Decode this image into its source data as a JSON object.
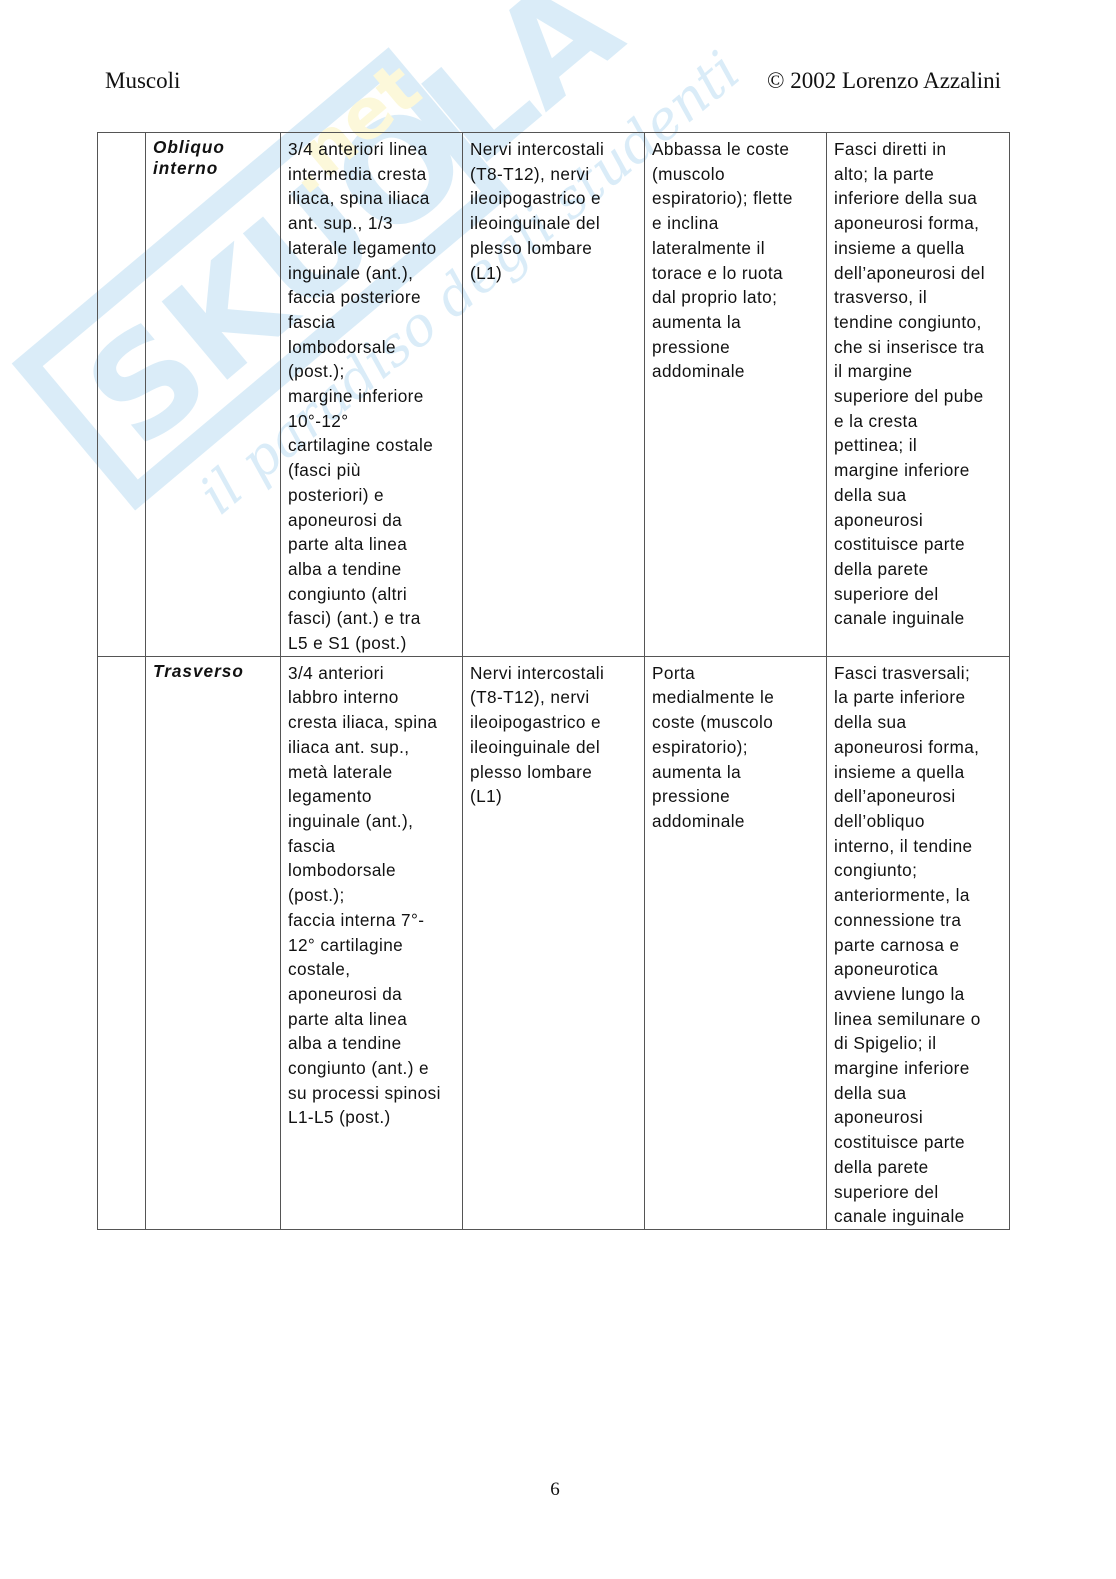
{
  "header": {
    "left": "Muscoli",
    "right": "© 2002 Lorenzo Azzalini"
  },
  "watermark": {
    "brand": "Skuola.net",
    "tagline": "il paradiso degli studenti",
    "color": "#5aaee0",
    "accent": "#f5e35a"
  },
  "table": {
    "rows": [
      {
        "group": "",
        "name": "Obliquo\ninterno",
        "origin": "3/4 anteriori linea\nintermedia cresta\niliaca, spina iliaca\nant. sup., 1/3\nlaterale legamento\ninguinale (ant.),\nfaccia posteriore\nfascia\nlombodorsale\n(post.);\nmargine inferiore\n10°-12°\ncartilagine costale\n(fasci più\nposteriori) e\naponeurosi da\nparte alta linea\nalba a tendine\ncongiunto (altri\nfasci) (ant.) e tra\nL5 e S1 (post.)",
        "innervation": "Nervi intercostali\n(T8-T12), nervi\nileoipogastrico e\nileoinguinale del\nplesso lombare\n(L1)",
        "action": "Abbassa le coste\n(muscolo\nespiratorio); flette\ne inclina\nlateralmente il\ntorace e lo ruota\ndal proprio lato;\naumenta la\npressione\naddominale",
        "notes": "Fasci diretti in\nalto; la parte\ninferiore della sua\naponeurosi forma,\ninsieme a quella\ndell’aponeurosi del\ntrasverso, il\ntendine congiunto,\nche si inserisce tra\nil margine\nsuperiore del pube\ne la cresta\npettinea; il\nmargine inferiore\ndella sua\naponeurosi\ncostituisce parte\ndella parete\nsuperiore del\ncanale inguinale"
      },
      {
        "group": "",
        "name": "Trasverso",
        "origin": "3/4 anteriori\nlabbro interno\ncresta iliaca, spina\niliaca ant. sup.,\nmetà laterale\nlegamento\ninguinale (ant.),\nfascia\nlombodorsale\n(post.);\nfaccia interna 7°-\n12° cartilagine\ncostale,\naponeurosi da\nparte alta linea\nalba a tendine\ncongiunto (ant.) e\nsu processi spinosi\nL1-L5 (post.)",
        "innervation": "Nervi intercostali\n(T8-T12), nervi\nileoipogastrico e\nileoinguinale del\nplesso lombare\n(L1)",
        "action": "Porta\nmedialmente le\ncoste (muscolo\nespiratorio);\naumenta la\npressione\naddominale",
        "notes": "Fasci trasversali;\nla parte inferiore\ndella sua\naponeurosi forma,\ninsieme a quella\ndell’aponeurosi\ndell’obliquo\ninterno, il tendine\ncongiunto;\nanteriormente, la\nconnessione tra\nparte carnosa e\naponeurotica\navviene lungo la\nlinea semilunare o\ndi Spigelio; il\nmargine inferiore\ndella sua\naponeurosi\ncostituisce parte\ndella parete\nsuperiore del\ncanale inguinale"
      }
    ]
  },
  "footer": {
    "page_number": "6"
  }
}
